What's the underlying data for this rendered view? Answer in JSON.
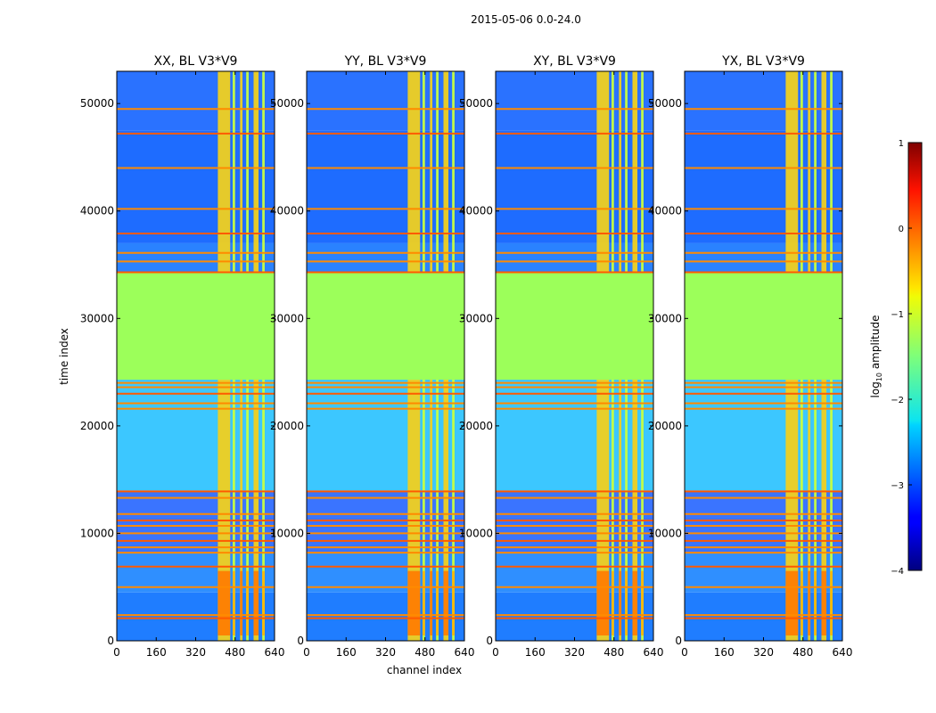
{
  "figure": {
    "suptitle": "2015-05-06 0.0-24.0",
    "xlabel": "channel index",
    "ylabel": "time index"
  },
  "chart_data": {
    "type": "heatmap",
    "x_range": [
      0,
      640
    ],
    "y_range": [
      0,
      53000
    ],
    "xticks": [
      0,
      160,
      320,
      480,
      640
    ],
    "yticks": [
      0,
      10000,
      20000,
      30000,
      40000,
      50000
    ],
    "panels": [
      {
        "title": "XX, BL V3*V9"
      },
      {
        "title": "YY, BL V3*V9"
      },
      {
        "title": "XY, BL V3*V9"
      },
      {
        "title": "YX, BL V3*V9"
      }
    ],
    "flagged_rows": [
      2100,
      2400,
      5000,
      6900,
      8200,
      8700,
      9300,
      10000,
      10700,
      11200,
      11800,
      13300,
      13900,
      21600,
      22100,
      23000,
      23600,
      24000,
      34300,
      35300,
      36100,
      37900,
      40200,
      44000,
      47200,
      49500
    ],
    "constant_block": [
      24300,
      34300
    ],
    "rfi_channel_bands": [
      [
        410,
        460
      ],
      [
        470,
        480
      ],
      [
        500,
        510
      ],
      [
        525,
        535
      ],
      [
        555,
        575
      ],
      [
        590,
        600
      ]
    ],
    "colorbar": {
      "label": "log10 amplitude",
      "range": [
        -4,
        1
      ],
      "ticks": [
        {
          "value": -4,
          "label": "−4"
        },
        {
          "value": -3,
          "label": "−3"
        },
        {
          "value": -2,
          "label": "−2"
        },
        {
          "value": -1,
          "label": "−1"
        },
        {
          "value": 0,
          "label": "0"
        },
        {
          "value": 1,
          "label": "1"
        }
      ],
      "colormap": "jet"
    }
  }
}
